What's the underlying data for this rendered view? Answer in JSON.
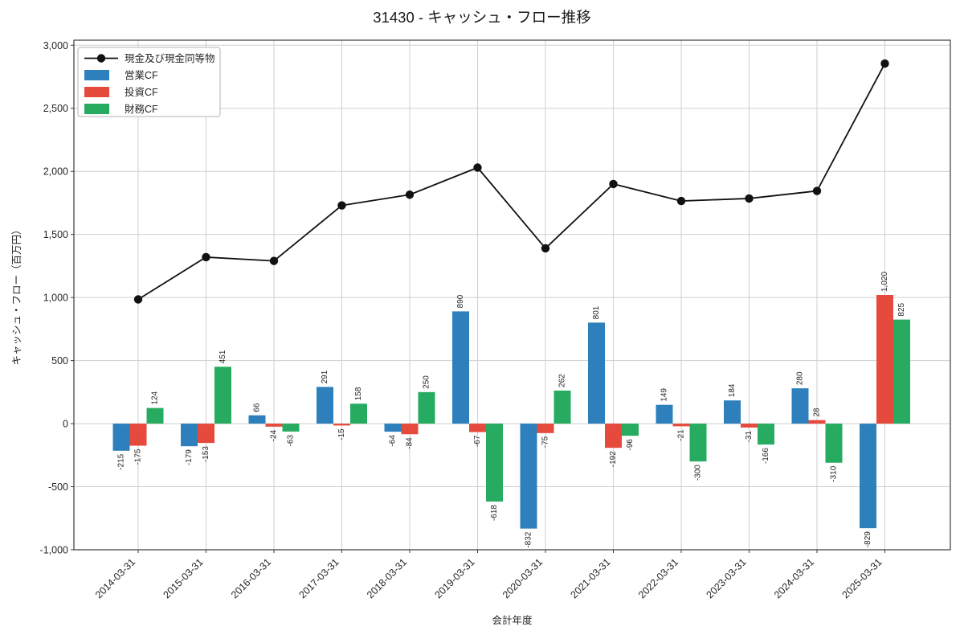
{
  "title": "31430 - キャッシュ・フロー推移",
  "chart_data": {
    "type": "combo-bar-line",
    "title": "31430 - キャッシュ・フロー推移",
    "xlabel": "会計年度",
    "ylabel": "キャッシュ・フロー（百万円）",
    "categories": [
      "2014-03-31",
      "2015-03-31",
      "2016-03-31",
      "2017-03-31",
      "2018-03-31",
      "2019-03-31",
      "2020-03-31",
      "2021-03-31",
      "2022-03-31",
      "2023-03-31",
      "2024-03-31",
      "2025-03-31"
    ],
    "series": [
      {
        "name": "現金及び現金同等物",
        "type": "line",
        "color": "#111111",
        "values": [
          985,
          1320,
          1290,
          1730,
          1815,
          2030,
          1390,
          1900,
          1765,
          1785,
          1845,
          2855
        ]
      },
      {
        "name": "営業CF",
        "type": "bar",
        "color": "#2e80bc",
        "values": [
          -215,
          -179,
          66,
          291,
          -64,
          890,
          -832,
          801,
          149,
          184,
          280,
          -829
        ]
      },
      {
        "name": "投資CF",
        "type": "bar",
        "color": "#e64a3c",
        "values": [
          -175,
          -153,
          -24,
          -15,
          -84,
          -67,
          -75,
          -192,
          -21,
          -31,
          28,
          1020
        ]
      },
      {
        "name": "財務CF",
        "type": "bar",
        "color": "#27ab60",
        "values": [
          124,
          451,
          -63,
          158,
          250,
          -618,
          262,
          -96,
          -300,
          -166,
          -310,
          825
        ]
      }
    ],
    "yticks": [
      -1000,
      -500,
      0,
      500,
      1000,
      1500,
      2000,
      2500,
      3000
    ],
    "ylim": [
      -1000,
      3040
    ],
    "grid": true,
    "bar_labels": true,
    "legend_position": "upper-left"
  }
}
